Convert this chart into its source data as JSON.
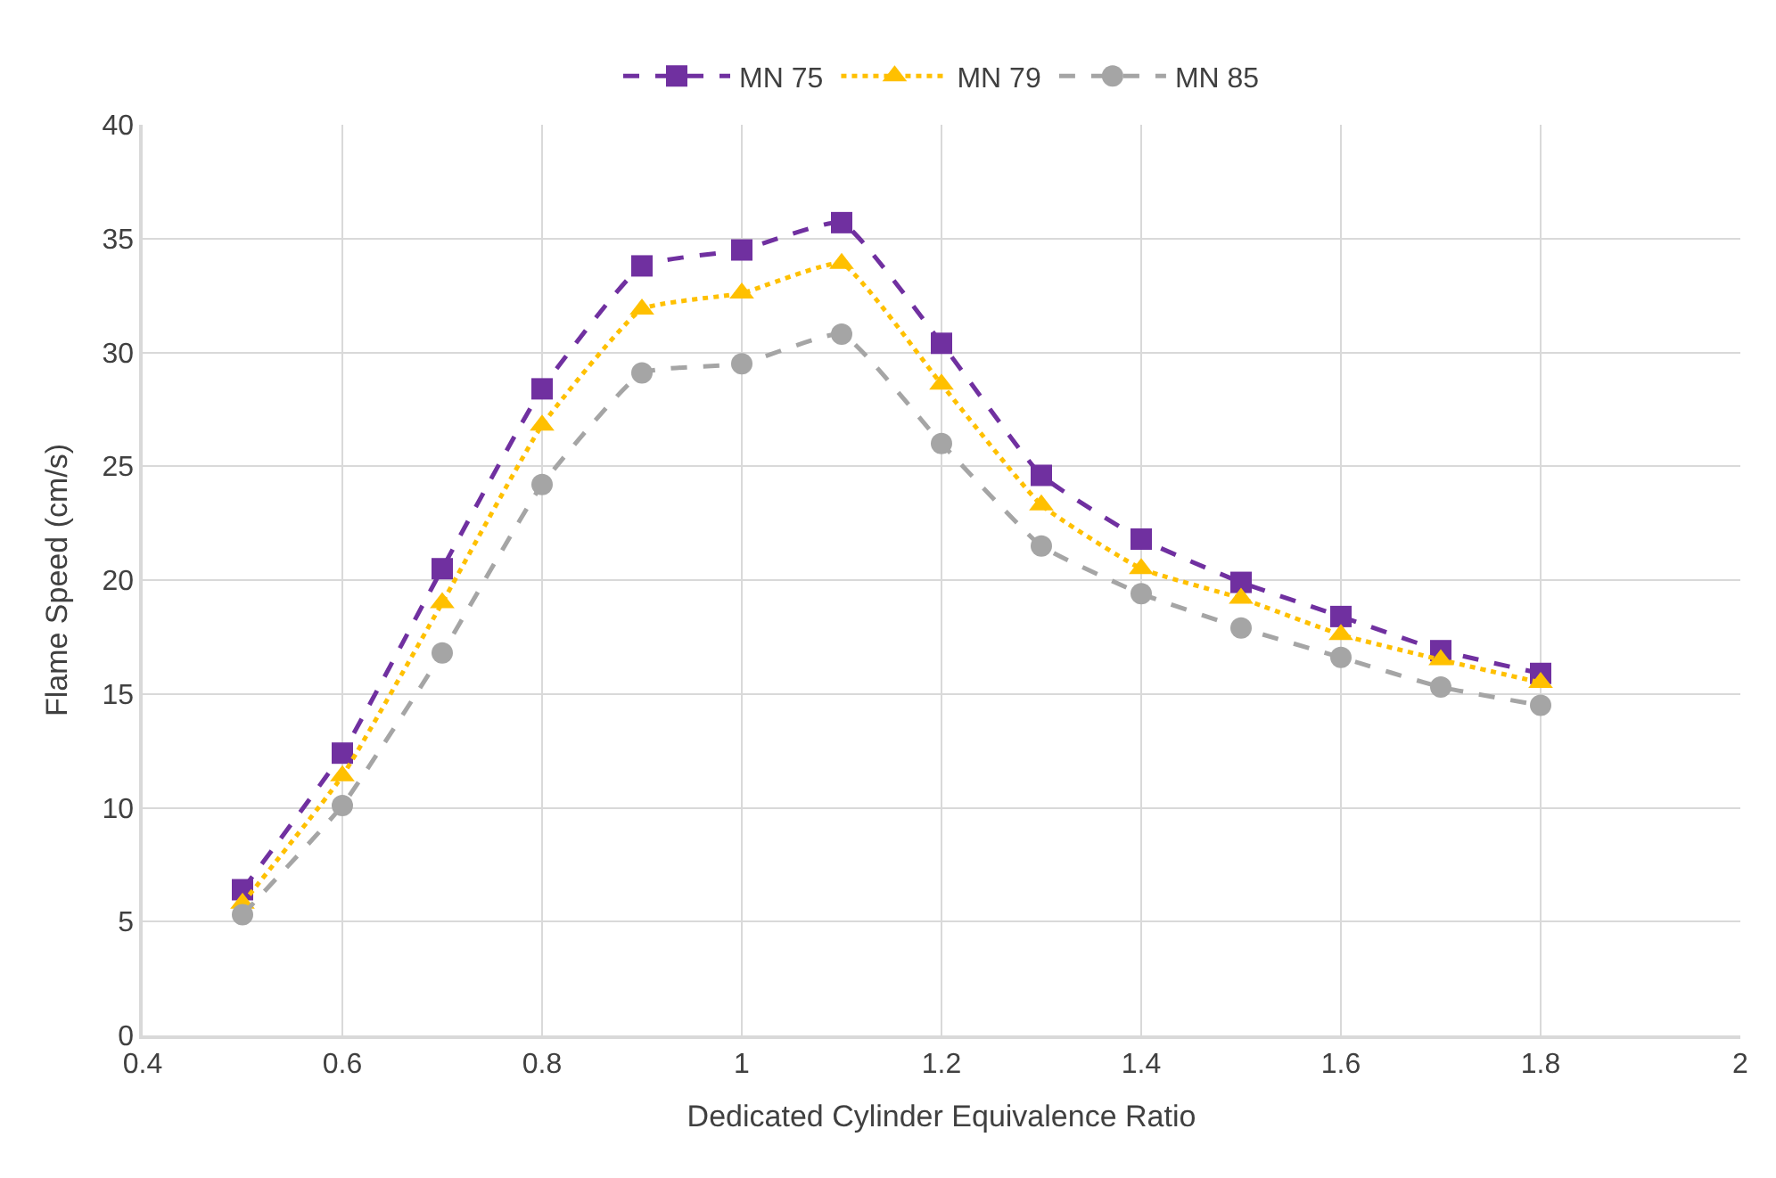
{
  "chart_data": {
    "type": "line",
    "xlabel": "Dedicated Cylinder Equivalence Ratio",
    "ylabel": "Flame Speed (cm/s)",
    "x": [
      0.5,
      0.6,
      0.7,
      0.8,
      0.9,
      1.0,
      1.1,
      1.2,
      1.3,
      1.4,
      1.5,
      1.6,
      1.7,
      1.8
    ],
    "series": [
      {
        "name": "MN 75",
        "color": "#7030a0",
        "marker": "square",
        "line_style": "dashed",
        "values": [
          6.4,
          12.4,
          20.5,
          28.4,
          33.8,
          34.5,
          35.7,
          30.4,
          24.6,
          21.8,
          19.9,
          18.4,
          16.9,
          15.9
        ]
      },
      {
        "name": "MN 79",
        "color": "#ffc000",
        "marker": "triangle",
        "line_style": "dotted",
        "values": [
          5.8,
          11.4,
          19.0,
          26.8,
          31.9,
          32.6,
          33.9,
          28.6,
          23.3,
          20.5,
          19.2,
          17.6,
          16.5,
          15.5
        ]
      },
      {
        "name": "MN 85",
        "color": "#a5a5a5",
        "marker": "circle",
        "line_style": "dashed",
        "values": [
          5.3,
          10.1,
          16.8,
          24.2,
          29.1,
          29.5,
          30.8,
          26.0,
          21.5,
          19.4,
          17.9,
          16.6,
          15.3,
          14.5
        ]
      }
    ],
    "xlim": [
      0.4,
      2
    ],
    "xticks": [
      0.4,
      0.6,
      0.8,
      1,
      1.2,
      1.4,
      1.6,
      1.8,
      2
    ],
    "ylim": [
      0,
      40
    ],
    "yticks": [
      0,
      5,
      10,
      15,
      20,
      25,
      30,
      35,
      40
    ],
    "grid": true,
    "legend": "top"
  }
}
